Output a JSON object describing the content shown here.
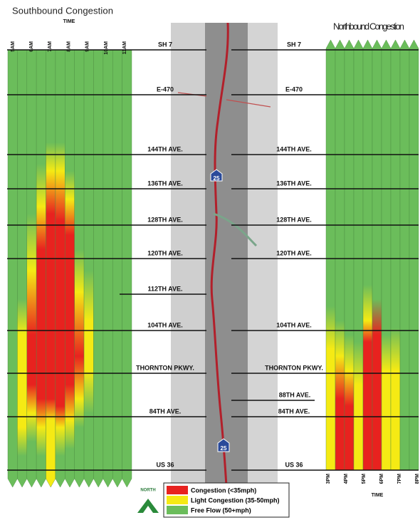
{
  "southbound": {
    "title": "Southbound Congestion",
    "axis_label": "TIME",
    "times": [
      "5AM",
      "6AM",
      "7AM",
      "8AM",
      "9AM",
      "10AM",
      "11AM"
    ]
  },
  "northbound": {
    "title": "Northbound Congestion",
    "axis_label": "TIME",
    "times": [
      "3PM",
      "4PM",
      "5PM",
      "6PM",
      "7PM",
      "8PM"
    ]
  },
  "streets": [
    "SH 7",
    "E-470",
    "144TH AVE.",
    "136TH AVE.",
    "128TH AVE.",
    "120TH AVE.",
    "112TH AVE.",
    "104TH AVE.",
    "THORNTON PKWY.",
    "88TH AVE.",
    "84TH AVE.",
    "US 36"
  ],
  "interstate": "25",
  "north_label": "NORTH",
  "legend": [
    "Congestion (<35mph)",
    "Light Congestion (35-50mph)",
    "Free Flow (50+mph)"
  ]
}
